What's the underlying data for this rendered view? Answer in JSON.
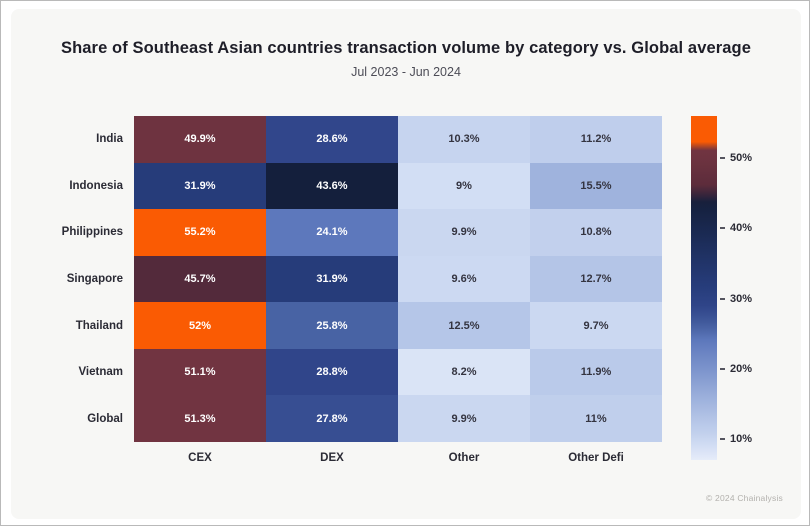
{
  "title": "Share of Southeast Asian countries transaction volume by category vs. Global average",
  "subtitle": "Jul 2023 - Jun 2024",
  "footer": "© 2024 Chainalysis",
  "colors": {
    "card_background": "#f7f7f5",
    "page_background": "#ffffff",
    "title_text": "#1e1e28",
    "subtitle_text": "#4d4d57",
    "label_text": "#2b2b35",
    "footer_text": "#b3b1ad",
    "cell_text_dark": "#343440",
    "cell_text_light": "#ffffff",
    "low_color": "#e6ecf9",
    "mid_blue": "#5d78bc",
    "dark_navy": "#141f3c",
    "maroon": "#6e3340",
    "high_orange": "#fa5b03"
  },
  "chart_data": {
    "type": "heatmap",
    "title": "Share of Southeast Asian countries transaction volume by category vs. Global average",
    "subtitle": "Jul 2023 - Jun 2024",
    "rows": [
      "India",
      "Indonesia",
      "Philippines",
      "Singapore",
      "Thailand",
      "Vietnam",
      "Global"
    ],
    "columns": [
      "CEX",
      "DEX",
      "Other",
      "Other Defi"
    ],
    "values": [
      [
        49.9,
        28.6,
        10.3,
        11.2
      ],
      [
        31.9,
        43.6,
        9.0,
        15.5
      ],
      [
        55.2,
        24.1,
        9.9,
        10.8
      ],
      [
        45.7,
        31.9,
        9.6,
        12.7
      ],
      [
        52.0,
        25.8,
        12.5,
        9.7
      ],
      [
        51.1,
        28.8,
        8.2,
        11.9
      ],
      [
        51.3,
        27.8,
        9.9,
        11.0
      ]
    ],
    "labels": [
      [
        "49.9%",
        "28.6%",
        "10.3%",
        "11.2%"
      ],
      [
        "31.9%",
        "43.6%",
        "9%",
        "15.5%"
      ],
      [
        "55.2%",
        "24.1%",
        "9.9%",
        "10.8%"
      ],
      [
        "45.7%",
        "31.9%",
        "9.6%",
        "12.7%"
      ],
      [
        "52%",
        "25.8%",
        "12.5%",
        "9.7%"
      ],
      [
        "51.1%",
        "28.8%",
        "8.2%",
        "11.9%"
      ],
      [
        "51.3%",
        "27.8%",
        "9.9%",
        "11%"
      ]
    ],
    "unit": "%",
    "legend_position": "right",
    "grid": false,
    "colorbar": {
      "min": 7,
      "max": 56,
      "tick_values": [
        50,
        40,
        30,
        20,
        10
      ],
      "tick_labels": [
        "50%",
        "40%",
        "30%",
        "20%",
        "10%"
      ]
    },
    "colormap_stops": [
      [
        7,
        "#e6ecf9"
      ],
      [
        9,
        "#d2def4"
      ],
      [
        10.5,
        "#c4d2ee"
      ],
      [
        12.7,
        "#b4c5e7"
      ],
      [
        15.5,
        "#9fb3dd"
      ],
      [
        20,
        "#7b93cc"
      ],
      [
        24.1,
        "#5d78bc"
      ],
      [
        26,
        "#4660a1"
      ],
      [
        28.7,
        "#30458a"
      ],
      [
        31.9,
        "#263c7a"
      ],
      [
        43.6,
        "#141f3c"
      ],
      [
        46,
        "#5c2c3b"
      ],
      [
        50,
        "#6e3340"
      ],
      [
        51.5,
        "#723441"
      ],
      [
        52,
        "#fa5b03"
      ],
      [
        56,
        "#fa5b03"
      ]
    ],
    "white_text_threshold": 18
  }
}
